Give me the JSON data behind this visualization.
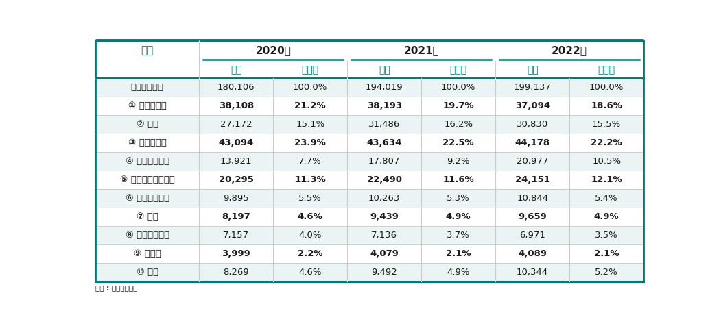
{
  "title_col": "구분",
  "year_headers": [
    "2020년",
    "2021년",
    "2022년"
  ],
  "sub_headers": [
    "매출",
    "점유율"
  ],
  "rows": [
    {
      "label": "방송사업매출",
      "bold": false,
      "values": [
        "180,106",
        "100.0%",
        "194,019",
        "100.0%",
        "199,137",
        "100.0%"
      ],
      "shade": true
    },
    {
      "label": "① 홈쇼핑방송",
      "bold": true,
      "values": [
        "38,108",
        "21.2%",
        "38,193",
        "19.7%",
        "37,094",
        "18.6%"
      ],
      "shade": false
    },
    {
      "label": "② 광고",
      "bold": false,
      "values": [
        "27,172",
        "15.1%",
        "31,486",
        "16.2%",
        "30,830",
        "15.5%"
      ],
      "shade": true
    },
    {
      "label": "③ 방송수신료",
      "bold": true,
      "values": [
        "43,094",
        "23.9%",
        "43,634",
        "22.5%",
        "44,178",
        "22.2%"
      ],
      "shade": false
    },
    {
      "label": "④ 프로그램판매",
      "bold": false,
      "values": [
        "13,921",
        "7.7%",
        "17,807",
        "9.2%",
        "20,977",
        "10.5%"
      ],
      "shade": true
    },
    {
      "label": "⑤ 홈쇼핑송출수수료",
      "bold": true,
      "values": [
        "20,295",
        "11.3%",
        "22,490",
        "11.6%",
        "24,151",
        "12.1%"
      ],
      "shade": false
    },
    {
      "label": "⑥ 프로그램제공",
      "bold": false,
      "values": [
        "9,895",
        "5.5%",
        "10,263",
        "5.3%",
        "10,844",
        "5.4%"
      ],
      "shade": true
    },
    {
      "label": "⑦ 협찬",
      "bold": true,
      "values": [
        "8,197",
        "4.6%",
        "9,439",
        "4.9%",
        "9,659",
        "4.9%"
      ],
      "shade": false
    },
    {
      "label": "⑧ 단말장치대여",
      "bold": false,
      "values": [
        "7,157",
        "4.0%",
        "7,136",
        "3.7%",
        "6,971",
        "3.5%"
      ],
      "shade": true
    },
    {
      "label": "⑨ 재송신",
      "bold": true,
      "values": [
        "3,999",
        "2.2%",
        "4,079",
        "2.1%",
        "4,089",
        "2.1%"
      ],
      "shade": false
    },
    {
      "label": "⑩ 기타",
      "bold": false,
      "values": [
        "8,269",
        "4.6%",
        "9,492",
        "4.9%",
        "10,344",
        "5.2%"
      ],
      "shade": true
    }
  ],
  "footer": "출처 : 방송통계포털",
  "teal_color": "#007B77",
  "shade_color": "#EAF4F4",
  "white_color": "#FFFFFF",
  "text_dark": "#1a1a1a"
}
